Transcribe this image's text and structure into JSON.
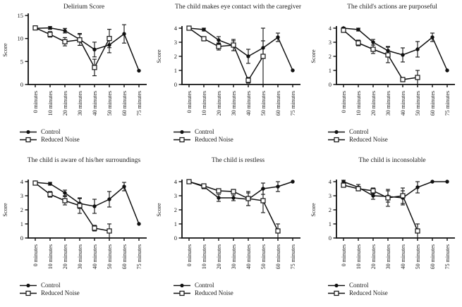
{
  "figure": {
    "ink_color": "#111111",
    "background": "#ffffff",
    "grid": false,
    "layout": "2 rows x 3 columns",
    "x_tick_rotation": 90
  },
  "legend": {
    "control_label": "Control",
    "reduced_label": "Reduced Noise",
    "control_marker": "filled-circle",
    "reduced_marker": "open-square",
    "position": "below-bottom-left"
  },
  "chart_data": [
    {
      "type": "line",
      "title": "Delirium Score",
      "xlabel": "",
      "ylabel": "Score",
      "ylim": [
        0,
        15
      ],
      "yticks": [
        0,
        5,
        10,
        15
      ],
      "error_bars": true,
      "categories": [
        "0 minutes",
        "10 minutes",
        "20 minutes",
        "30 minutes",
        "40 minutes",
        "50 minutes",
        "60 minutes",
        "75 minutes"
      ],
      "series": [
        {
          "name": "Control",
          "marker": "filled-circle",
          "values": [
            12.2,
            12.3,
            11.7,
            9.8,
            7.6,
            8.6,
            11.0,
            3.0
          ],
          "errors": [
            0.3,
            0.3,
            0.5,
            1.3,
            1.6,
            1.7,
            2.0,
            0
          ]
        },
        {
          "name": "Reduced Noise",
          "marker": "open-square",
          "values": [
            12.3,
            10.9,
            9.3,
            9.7,
            3.7,
            10.0,
            null,
            null
          ],
          "errors": [
            0.3,
            0.6,
            0.9,
            1.2,
            1.8,
            2.0,
            0,
            0
          ]
        }
      ]
    },
    {
      "type": "line",
      "title": "The child makes eye contact with the caregiver",
      "xlabel": "",
      "ylabel": "Score",
      "ylim": [
        0,
        4
      ],
      "yticks": [
        0,
        1,
        2,
        3,
        4
      ],
      "error_bars": true,
      "categories": [
        "0 minutes",
        "10 minutes",
        "20 minutes",
        "30 minutes",
        "40 minutes",
        "50 minutes",
        "60 minutes",
        "75 minutes"
      ],
      "series": [
        {
          "name": "Control",
          "marker": "filled-circle",
          "values": [
            4.0,
            3.9,
            3.15,
            2.75,
            2.0,
            2.6,
            3.35,
            1.0
          ],
          "errors": [
            0.05,
            0.1,
            0.25,
            0.35,
            0.5,
            0.5,
            0.3,
            0
          ]
        },
        {
          "name": "Reduced Noise",
          "marker": "open-square",
          "values": [
            4.0,
            3.25,
            2.7,
            2.8,
            0.3,
            2.0,
            null,
            null
          ],
          "errors": [
            0.05,
            0.15,
            0.25,
            0.4,
            0.2,
            2.0,
            0,
            0
          ]
        }
      ]
    },
    {
      "type": "line",
      "title": "The child's actions are purposeful",
      "xlabel": "",
      "ylabel": "Score",
      "ylim": [
        0,
        4
      ],
      "yticks": [
        0,
        1,
        2,
        3,
        4
      ],
      "error_bars": true,
      "categories": [
        "0 minutes",
        "10 minutes",
        "20 minutes",
        "30 minutes",
        "40 minutes",
        "50 minutes",
        "60 minutes",
        "75 minutes"
      ],
      "series": [
        {
          "name": "Control",
          "marker": "filled-circle",
          "values": [
            4.0,
            3.9,
            3.0,
            2.4,
            2.1,
            2.5,
            3.35,
            1.0
          ],
          "errors": [
            0.05,
            0.1,
            0.2,
            0.3,
            0.5,
            0.55,
            0.3,
            0
          ]
        },
        {
          "name": "Reduced Noise",
          "marker": "open-square",
          "values": [
            3.85,
            2.95,
            2.5,
            2.1,
            0.35,
            0.5,
            null,
            null
          ],
          "errors": [
            0.15,
            0.2,
            0.3,
            0.55,
            0.15,
            0.5,
            0,
            0
          ]
        }
      ]
    },
    {
      "type": "line",
      "title": "The child is aware of his/her surroundings",
      "xlabel": "",
      "ylabel": "Score",
      "ylim": [
        0,
        4
      ],
      "yticks": [
        0,
        1,
        2,
        3,
        4
      ],
      "error_bars": true,
      "categories": [
        "0 minutes",
        "10 minutes",
        "20 minutes",
        "30 minutes",
        "40 minutes",
        "50 minutes",
        "60 minutes",
        "75 minutes"
      ],
      "series": [
        {
          "name": "Control",
          "marker": "filled-circle",
          "values": [
            3.95,
            3.85,
            3.2,
            2.45,
            2.25,
            2.75,
            3.65,
            1.0
          ],
          "errors": [
            0.05,
            0.1,
            0.2,
            0.35,
            0.5,
            0.55,
            0.3,
            0
          ]
        },
        {
          "name": "Reduced Noise",
          "marker": "open-square",
          "values": [
            3.9,
            3.1,
            2.65,
            2.3,
            0.7,
            0.5,
            null,
            null
          ],
          "errors": [
            0.1,
            0.2,
            0.3,
            0.55,
            0.2,
            0.5,
            0,
            0
          ]
        }
      ]
    },
    {
      "type": "line",
      "title": "The child is restless",
      "xlabel": "",
      "ylabel": "Score",
      "ylim": [
        0,
        4
      ],
      "yticks": [
        0,
        1,
        2,
        3,
        4
      ],
      "error_bars": true,
      "categories": [
        "0 minutes",
        "10 minutes",
        "20 minutes",
        "30 minutes",
        "40 minutes",
        "50 minutes",
        "60 minutes",
        "75 minutes"
      ],
      "series": [
        {
          "name": "Control",
          "marker": "filled-circle",
          "values": [
            4.0,
            3.65,
            2.85,
            2.85,
            2.75,
            3.5,
            3.65,
            4.0
          ],
          "errors": [
            0.05,
            0.15,
            0.25,
            0.2,
            0.45,
            0.4,
            0.35,
            0
          ]
        },
        {
          "name": "Reduced Noise",
          "marker": "open-square",
          "values": [
            4.0,
            3.7,
            3.35,
            3.3,
            2.8,
            2.65,
            0.5,
            null
          ],
          "errors": [
            0.05,
            0.1,
            0.15,
            0.15,
            0.5,
            0.85,
            0.5,
            0
          ]
        }
      ]
    },
    {
      "type": "line",
      "title": "The child is inconsolable",
      "xlabel": "",
      "ylabel": "Score",
      "ylim": [
        0,
        4
      ],
      "yticks": [
        0,
        1,
        2,
        3,
        4
      ],
      "error_bars": true,
      "categories": [
        "0 minutes",
        "10 minutes",
        "20 minutes",
        "30 minutes",
        "40 minutes",
        "50 minutes",
        "60 minutes",
        "75 minutes"
      ],
      "series": [
        {
          "name": "Control",
          "marker": "filled-circle",
          "values": [
            4.0,
            3.6,
            3.0,
            2.95,
            2.85,
            3.6,
            4.0,
            4.0
          ],
          "errors": [
            0.1,
            0.2,
            0.25,
            0.4,
            0.5,
            0.4,
            0,
            0
          ]
        },
        {
          "name": "Reduced Noise",
          "marker": "open-square",
          "values": [
            3.75,
            3.5,
            3.35,
            2.85,
            3.0,
            0.5,
            null,
            null
          ],
          "errors": [
            0.15,
            0.15,
            0.2,
            0.6,
            0.55,
            0.5,
            0,
            0
          ]
        }
      ]
    }
  ]
}
